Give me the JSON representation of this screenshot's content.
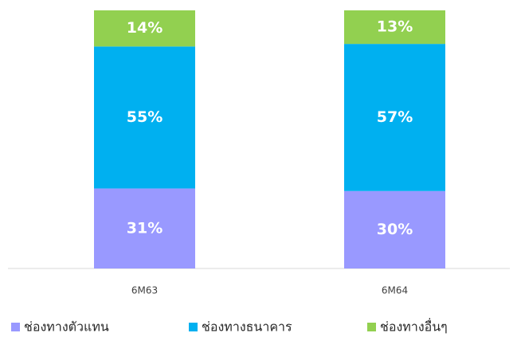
{
  "chart_data": {
    "type": "stacked_bar",
    "categories": [
      "6M63",
      "6M64"
    ],
    "series": [
      {
        "name": "ช่องทางตัวแทน",
        "color": "#9999ff",
        "values": [
          31,
          30
        ],
        "value_labels": [
          "31%",
          "30%"
        ]
      },
      {
        "name": "ช่องทางธนาคาร",
        "color": "#00b0f0",
        "values": [
          55,
          57
        ],
        "value_labels": [
          "55%",
          "57%"
        ]
      },
      {
        "name": "ช่องทางอื่นๆ",
        "color": "#92d050",
        "values": [
          14,
          13
        ],
        "value_labels": [
          "14%",
          "13%"
        ]
      }
    ],
    "ylim": [
      0,
      100
    ],
    "legend": "bottom"
  }
}
